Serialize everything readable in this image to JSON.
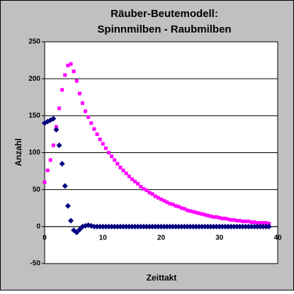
{
  "chart_data": {
    "type": "scatter",
    "title": [
      "Räuber-Beutemodell:",
      "Spinnmilben - Raubmilben"
    ],
    "x_label": "Zeittakt",
    "y_label": "Anzahl",
    "x": [
      0,
      0.5,
      1,
      1.5,
      2,
      2.5,
      3,
      3.5,
      4,
      4.5,
      5,
      5.5,
      6,
      6.5,
      7,
      7.5,
      8,
      8.5,
      9,
      9.5,
      10,
      10.5,
      11,
      11.5,
      12,
      12.5,
      13,
      13.5,
      14,
      14.5,
      15,
      15.5,
      16,
      16.5,
      17,
      17.5,
      18,
      18.5,
      19,
      19.5,
      20,
      20.5,
      21,
      21.5,
      22,
      22.5,
      23,
      23.5,
      24,
      24.5,
      25,
      25.5,
      26,
      26.5,
      27,
      27.5,
      28,
      28.5,
      29,
      29.5,
      30,
      30.5,
      31,
      31.5,
      32,
      32.5,
      33,
      33.5,
      34,
      34.5,
      35,
      35.5,
      36,
      36.5,
      37,
      37.5,
      38,
      38.5
    ],
    "series": [
      {
        "color": "#ff00ff",
        "marker": "square",
        "values": [
          60,
          76,
          90,
          110,
          135,
          160,
          185,
          205,
          218,
          220,
          210,
          197,
          180,
          167,
          156,
          148,
          140,
          132,
          125,
          118,
          112,
          106,
          100,
          95,
          90,
          85,
          80,
          76,
          72,
          68,
          64,
          61,
          58,
          54,
          51,
          49,
          46,
          44,
          41,
          39,
          37,
          35,
          33,
          31,
          30,
          28,
          27,
          25,
          24,
          22,
          21,
          20,
          19,
          18,
          17,
          16,
          15,
          14,
          13,
          13,
          12,
          11,
          11,
          10,
          9,
          9,
          8,
          8,
          7,
          7,
          7,
          6,
          6,
          5,
          5,
          5,
          5,
          4
        ]
      },
      {
        "color": "#000080",
        "marker": "diamond",
        "values": [
          140,
          142,
          144,
          146,
          131,
          110,
          85,
          55,
          28,
          8,
          -5,
          -8,
          -4,
          0,
          1,
          2,
          1,
          0,
          0,
          0,
          0,
          0,
          0,
          0,
          0,
          0,
          0,
          0,
          0,
          0,
          0,
          0,
          0,
          0,
          0,
          0,
          0,
          0,
          0,
          0,
          0,
          0,
          0,
          0,
          0,
          0,
          0,
          0,
          0,
          0,
          0,
          0,
          0,
          0,
          0,
          0,
          0,
          0,
          0,
          0,
          0,
          0,
          0,
          0,
          0,
          0,
          0,
          0,
          0,
          0,
          0,
          0,
          0,
          0,
          0,
          0,
          0,
          0
        ]
      }
    ],
    "xlim": [
      0,
      40
    ],
    "xticks": [
      0,
      10,
      20,
      30,
      40
    ],
    "ylim": [
      -50,
      250
    ],
    "yticks": [
      -50,
      0,
      50,
      100,
      150,
      200,
      250
    ],
    "grid": true
  }
}
